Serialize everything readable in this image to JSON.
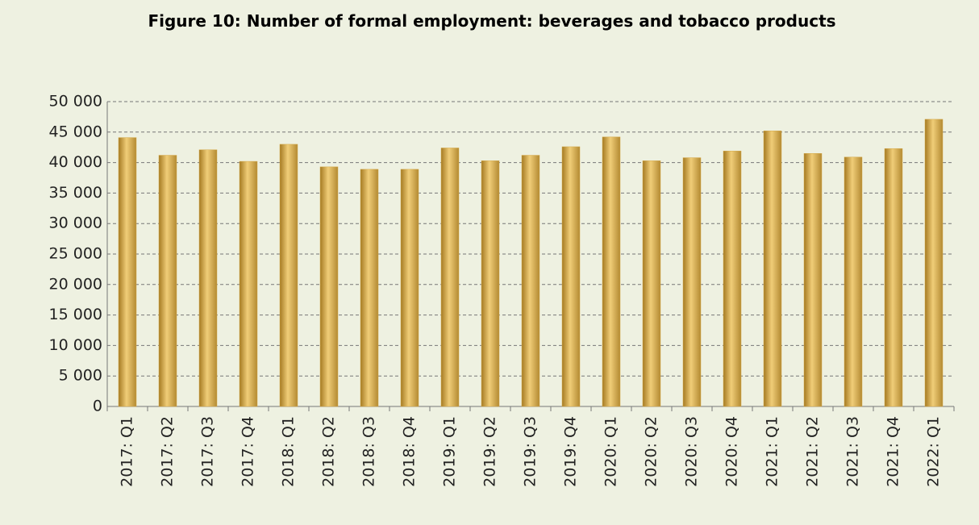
{
  "chart_data": {
    "type": "bar",
    "title": "Figure 10: Number of formal employment: beverages and tobacco products",
    "categories": [
      "2017: Q1",
      "2017: Q2",
      "2017: Q3",
      "2017: Q4",
      "2018: Q1",
      "2018: Q2",
      "2018: Q3",
      "2018: Q4",
      "2019: Q1",
      "2019: Q2",
      "2019: Q3",
      "2019: Q4",
      "2020: Q1",
      "2020: Q2",
      "2020: Q3",
      "2020: Q4",
      "2021: Q1",
      "2021: Q2",
      "2021: Q3",
      "2021: Q4",
      "2022: Q1"
    ],
    "values": [
      44100,
      41200,
      42100,
      40200,
      43000,
      39300,
      38900,
      38900,
      42400,
      40300,
      41200,
      42600,
      44200,
      40300,
      40800,
      41900,
      45200,
      41500,
      40900,
      42300,
      47100
    ],
    "color": "#d4a94a",
    "ylim": [
      0,
      50000
    ],
    "yticks": [
      0,
      {
        "value": 5000,
        "label": "5 000"
      },
      {
        "value": 10000,
        "label": "10 000"
      },
      {
        "value": 15000,
        "label": "15 000"
      },
      {
        "value": 20000,
        "label": "20 000"
      },
      {
        "value": 25000,
        "label": "25 000"
      },
      {
        "value": 30000,
        "label": "30 000"
      },
      {
        "value": 35000,
        "label": "35 000"
      },
      {
        "value": 40000,
        "label": "40 000"
      },
      {
        "value": 45000,
        "label": "45 000"
      },
      {
        "value": 50000,
        "label": "50 000"
      }
    ],
    "grid": true
  }
}
